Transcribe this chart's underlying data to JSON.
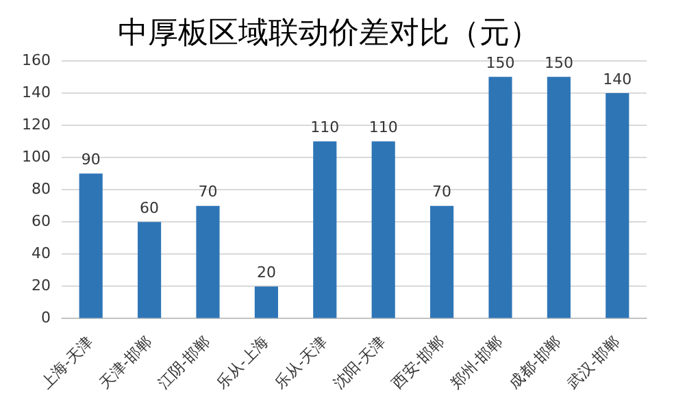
{
  "chart_data": {
    "type": "bar",
    "title": "中厚板区域联动价差对比（元）",
    "categories": [
      "上海-天津",
      "天津-邯郸",
      "江阴-邯郸",
      "乐从-上海",
      "乐从-天津",
      "沈阳-天津",
      "西安-邯郸",
      "郑州-邯郸",
      "成都-邯郸",
      "武汉-邯郸"
    ],
    "values": [
      90,
      60,
      70,
      20,
      110,
      110,
      70,
      150,
      150,
      140
    ],
    "color": "#2e75b6",
    "ylim": [
      0,
      160
    ],
    "yticks": [
      0,
      20,
      40,
      60,
      80,
      100,
      120,
      140,
      160
    ],
    "grid": "y",
    "data_labels": true,
    "legend": false
  }
}
